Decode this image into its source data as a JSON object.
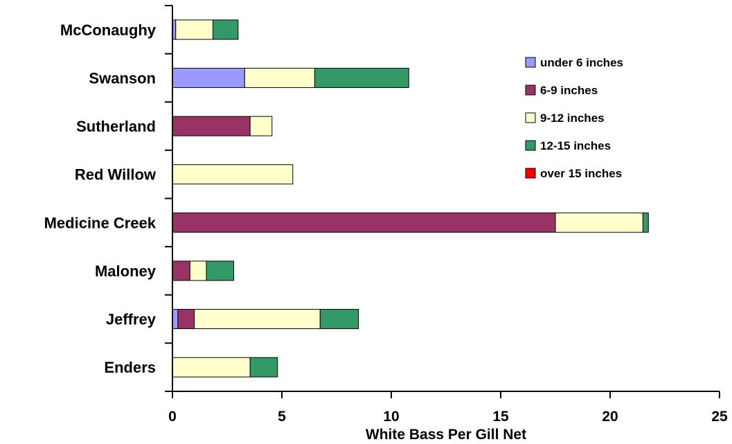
{
  "chart_data": {
    "type": "bar",
    "orientation": "horizontal",
    "stacked": true,
    "title": "",
    "xlabel": "White Bass Per Gill Net",
    "ylabel": "",
    "xlim": [
      0,
      25
    ],
    "xticks": [
      0,
      5,
      10,
      15,
      20,
      25
    ],
    "grid": false,
    "legend_position": "top-right",
    "categories": [
      "McConaughy",
      "Swanson",
      "Sutherland",
      "Red Willow",
      "Medicine Creek",
      "Maloney",
      "Jeffrey",
      "Enders"
    ],
    "series": [
      {
        "name": "under 6 inches",
        "color": "#9999ff",
        "values": [
          0.15,
          3.3,
          0,
          0,
          0,
          0,
          0.25,
          0
        ]
      },
      {
        "name": "6-9 inches",
        "color": "#993366",
        "values": [
          0,
          0,
          3.55,
          0,
          17.5,
          0.8,
          0.75,
          0
        ]
      },
      {
        "name": "9-12 inches",
        "color": "#ffffcc",
        "values": [
          1.7,
          3.2,
          1.0,
          5.5,
          4.0,
          0.75,
          5.75,
          3.55
        ]
      },
      {
        "name": "12-15 inches",
        "color": "#339966",
        "values": [
          1.15,
          4.3,
          0,
          0,
          0.25,
          1.25,
          1.75,
          1.25
        ]
      },
      {
        "name": "over 15 inches",
        "color": "#ff0000",
        "values": [
          0,
          0,
          0,
          0,
          0,
          0,
          0,
          0
        ]
      }
    ]
  }
}
